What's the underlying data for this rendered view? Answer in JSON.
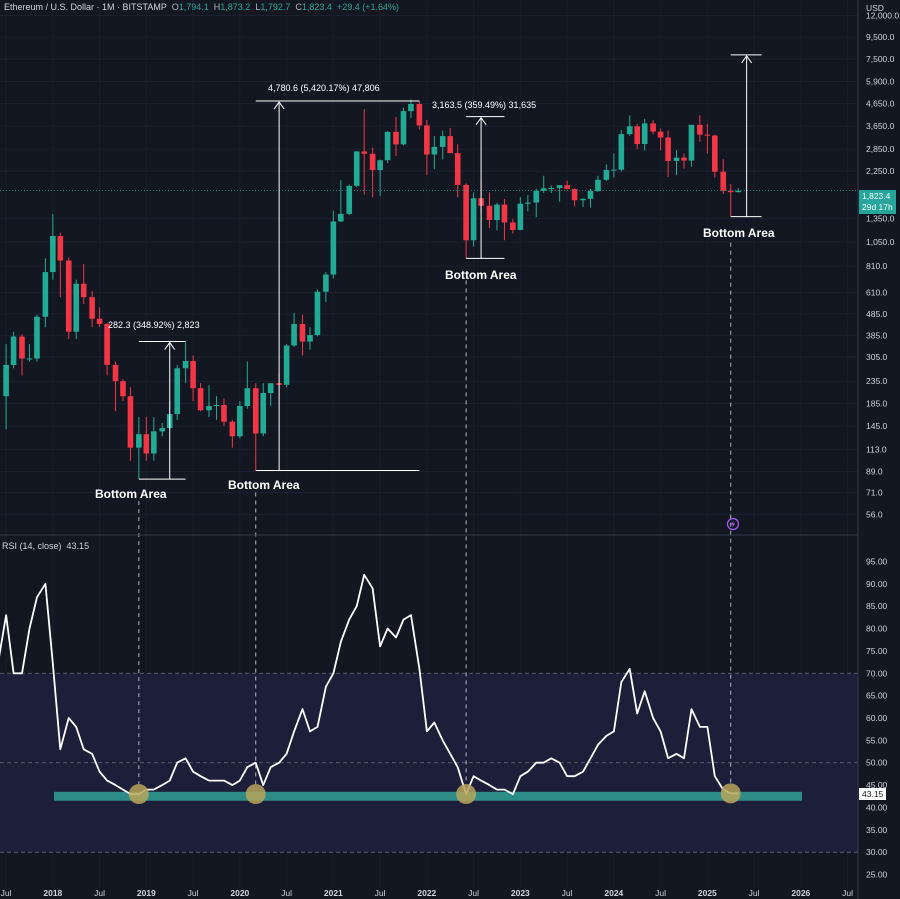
{
  "header": {
    "symbol": "Ethereum / U.S. Dollar · 1M · BITSTAMP",
    "o_label": "O",
    "o_value": "1,794.1",
    "h_label": "H",
    "h_value": "1,873.2",
    "l_label": "L",
    "l_value": "1,792.7",
    "c_label": "C",
    "c_value": "1,823.4",
    "change": "+29.4 (+1.64%)"
  },
  "currency": "USD",
  "price_tag": {
    "price": "1,823.4",
    "countdown": "29d 17h"
  },
  "rsi": {
    "label": "RSI (14, close)",
    "value": "43.15"
  },
  "annotations": [
    {
      "id": "a2019",
      "text": "282.3 (348.92%) 2,823",
      "bottom": "Bottom Area"
    },
    {
      "id": "a2020",
      "text": "4,780.6 (5,420.17%) 47,806",
      "bottom": "Bottom Area"
    },
    {
      "id": "a2022",
      "text": "3,163.5 (359.49%) 31,635",
      "bottom": "Bottom Area"
    },
    {
      "id": "a2025",
      "text": "",
      "bottom": "Bottom Area"
    }
  ],
  "chart_data": [
    {
      "type": "candlestick",
      "title": "Ethereum / U.S. Dollar · 1M · BITSTAMP",
      "y_scale": "log",
      "ylim": [
        49,
        13000
      ],
      "y_ticks": [
        "12,000.0",
        "9,500.0",
        "7,500.0",
        "5,900.0",
        "4,650.0",
        "3,650.0",
        "2,850.0",
        "2,250.0",
        "1,350.0",
        "1,050.0",
        "810.0",
        "610.0",
        "485.0",
        "385.0",
        "305.0",
        "235.0",
        "185.0",
        "145.0",
        "113.0",
        "89.0",
        "71.0",
        "56.0"
      ],
      "x_ticks": [
        "Jul",
        "2018",
        "Jul",
        "2019",
        "Jul",
        "2020",
        "Jul",
        "2021",
        "Jul",
        "2022",
        "Jul",
        "2023",
        "Jul",
        "2024",
        "Jul",
        "2025",
        "Jul",
        "2026",
        "Jul"
      ],
      "ohlc": [
        [
          2017.5,
          200,
          350,
          140,
          280
        ],
        [
          2017.58,
          280,
          400,
          270,
          380
        ],
        [
          2017.67,
          380,
          390,
          250,
          300
        ],
        [
          2017.75,
          300,
          350,
          290,
          300
        ],
        [
          2017.83,
          300,
          480,
          290,
          470
        ],
        [
          2017.92,
          470,
          880,
          420,
          760
        ],
        [
          2018.0,
          760,
          1420,
          700,
          1120
        ],
        [
          2018.08,
          1120,
          1160,
          580,
          860
        ],
        [
          2018.17,
          860,
          890,
          370,
          400
        ],
        [
          2018.25,
          400,
          700,
          370,
          670
        ],
        [
          2018.33,
          670,
          830,
          540,
          580
        ],
        [
          2018.42,
          580,
          620,
          420,
          460
        ],
        [
          2018.5,
          460,
          520,
          420,
          435
        ],
        [
          2018.58,
          435,
          440,
          250,
          280
        ],
        [
          2018.67,
          280,
          290,
          170,
          235
        ],
        [
          2018.75,
          235,
          240,
          190,
          200
        ],
        [
          2018.83,
          200,
          220,
          100,
          115
        ],
        [
          2018.92,
          115,
          160,
          82,
          133
        ],
        [
          2019.0,
          133,
          160,
          100,
          108
        ],
        [
          2019.08,
          108,
          160,
          100,
          137
        ],
        [
          2019.17,
          137,
          150,
          130,
          142
        ],
        [
          2019.25,
          142,
          190,
          140,
          165
        ],
        [
          2019.33,
          165,
          280,
          155,
          270
        ],
        [
          2019.42,
          270,
          360,
          230,
          292
        ],
        [
          2019.5,
          292,
          310,
          190,
          218
        ],
        [
          2019.58,
          218,
          230,
          170,
          172
        ],
        [
          2019.67,
          172,
          225,
          160,
          180
        ],
        [
          2019.75,
          180,
          200,
          155,
          182
        ],
        [
          2019.83,
          182,
          195,
          145,
          152
        ],
        [
          2019.92,
          152,
          155,
          115,
          130
        ],
        [
          2020.0,
          130,
          190,
          127,
          180
        ],
        [
          2020.08,
          180,
          290,
          175,
          218
        ],
        [
          2020.17,
          218,
          230,
          90,
          134
        ],
        [
          2020.25,
          134,
          230,
          130,
          207
        ],
        [
          2020.33,
          207,
          225,
          180,
          230
        ],
        [
          2020.42,
          230,
          255,
          220,
          226
        ],
        [
          2020.5,
          226,
          350,
          220,
          345
        ],
        [
          2020.58,
          345,
          490,
          340,
          435
        ],
        [
          2020.67,
          435,
          480,
          310,
          360
        ],
        [
          2020.75,
          360,
          420,
          330,
          386
        ],
        [
          2020.83,
          386,
          630,
          380,
          615
        ],
        [
          2020.92,
          615,
          760,
          550,
          740
        ],
        [
          2021.0,
          740,
          1470,
          710,
          1310
        ],
        [
          2021.08,
          1310,
          2040,
          1300,
          1420
        ],
        [
          2021.17,
          1420,
          1950,
          1400,
          1920
        ],
        [
          2021.25,
          1920,
          2790,
          1900,
          2780
        ],
        [
          2021.33,
          2780,
          4380,
          1750,
          2710
        ],
        [
          2021.42,
          2710,
          2900,
          1700,
          2275
        ],
        [
          2021.5,
          2275,
          2550,
          1720,
          2530
        ],
        [
          2021.58,
          2530,
          3460,
          2450,
          3430
        ],
        [
          2021.67,
          3430,
          4030,
          2650,
          3000
        ],
        [
          2021.75,
          3000,
          4460,
          2970,
          4290
        ],
        [
          2021.83,
          4290,
          4870,
          3980,
          4630
        ],
        [
          2021.92,
          4630,
          4780,
          3520,
          3680
        ],
        [
          2022.0,
          3680,
          3900,
          2160,
          2690
        ],
        [
          2022.08,
          2690,
          3280,
          2300,
          2920
        ],
        [
          2022.17,
          2920,
          3480,
          2550,
          3280
        ],
        [
          2022.25,
          3280,
          3580,
          2750,
          2730
        ],
        [
          2022.33,
          2730,
          3000,
          1700,
          1940
        ],
        [
          2022.42,
          1940,
          1970,
          880,
          1070
        ],
        [
          2022.5,
          1070,
          1790,
          1000,
          1680
        ],
        [
          2022.58,
          1680,
          2030,
          1420,
          1550
        ],
        [
          2022.67,
          1550,
          1790,
          1220,
          1330
        ],
        [
          2022.75,
          1330,
          1600,
          1190,
          1570
        ],
        [
          2022.83,
          1570,
          1670,
          1070,
          1295
        ],
        [
          2022.92,
          1295,
          1350,
          1150,
          1195
        ],
        [
          2023.0,
          1195,
          1700,
          1190,
          1585
        ],
        [
          2023.08,
          1585,
          1740,
          1460,
          1605
        ],
        [
          2023.17,
          1605,
          1860,
          1370,
          1820
        ],
        [
          2023.25,
          1820,
          2140,
          1780,
          1870
        ],
        [
          2023.33,
          1870,
          1930,
          1780,
          1875
        ],
        [
          2023.42,
          1875,
          1900,
          1620,
          1935
        ],
        [
          2023.5,
          1935,
          2030,
          1850,
          1855
        ],
        [
          2023.58,
          1855,
          1870,
          1540,
          1645
        ],
        [
          2023.67,
          1645,
          1680,
          1530,
          1670
        ],
        [
          2023.75,
          1670,
          1860,
          1520,
          1815
        ],
        [
          2023.83,
          1815,
          2140,
          1800,
          2050
        ],
        [
          2023.92,
          2050,
          2420,
          2020,
          2280
        ],
        [
          2024.0,
          2280,
          2720,
          2100,
          2285
        ],
        [
          2024.08,
          2285,
          3500,
          2240,
          3350
        ],
        [
          2024.17,
          3350,
          4090,
          3290,
          3640
        ],
        [
          2024.25,
          3640,
          3740,
          2850,
          3010
        ],
        [
          2024.33,
          3010,
          3950,
          2810,
          3760
        ],
        [
          2024.42,
          3760,
          3890,
          3350,
          3440
        ],
        [
          2024.5,
          3440,
          3560,
          2810,
          3230
        ],
        [
          2024.58,
          3230,
          3480,
          2110,
          2510
        ],
        [
          2024.67,
          2510,
          2820,
          2150,
          2600
        ],
        [
          2024.75,
          2600,
          2720,
          2310,
          2520
        ],
        [
          2024.83,
          2520,
          3700,
          2360,
          3700
        ],
        [
          2024.92,
          3700,
          4110,
          3090,
          3330
        ],
        [
          2025.0,
          3330,
          3740,
          2720,
          3300
        ],
        [
          2025.08,
          3300,
          3330,
          2100,
          2235
        ],
        [
          2025.17,
          2235,
          2560,
          1760,
          1820
        ],
        [
          2025.25,
          1820,
          1955,
          1380,
          1794
        ],
        [
          2025.33,
          1794,
          1873,
          1792,
          1823
        ]
      ]
    },
    {
      "type": "line",
      "title": "RSI (14, close)",
      "ylim": [
        22,
        98
      ],
      "y_ticks": [
        "95.00",
        "90.00",
        "85.00",
        "80.00",
        "75.00",
        "70.00",
        "65.00",
        "60.00",
        "55.00",
        "50.00",
        "45.00",
        "40.00",
        "35.00",
        "30.00",
        "25.00"
      ],
      "overbought": 70,
      "oversold": 30,
      "support_band": [
        41.5,
        43.5
      ],
      "x": [
        2017.42,
        2017.5,
        2017.58,
        2017.67,
        2017.75,
        2017.83,
        2017.92,
        2018.0,
        2018.08,
        2018.17,
        2018.25,
        2018.33,
        2018.42,
        2018.5,
        2018.58,
        2018.67,
        2018.75,
        2018.83,
        2018.92,
        2019.0,
        2019.08,
        2019.17,
        2019.25,
        2019.33,
        2019.42,
        2019.5,
        2019.58,
        2019.67,
        2019.75,
        2019.83,
        2019.92,
        2020.0,
        2020.08,
        2020.17,
        2020.25,
        2020.33,
        2020.42,
        2020.5,
        2020.58,
        2020.67,
        2020.75,
        2020.83,
        2020.92,
        2021.0,
        2021.08,
        2021.17,
        2021.25,
        2021.33,
        2021.42,
        2021.5,
        2021.58,
        2021.67,
        2021.75,
        2021.83,
        2021.92,
        2022.0,
        2022.08,
        2022.17,
        2022.25,
        2022.33,
        2022.42,
        2022.5,
        2022.58,
        2022.67,
        2022.75,
        2022.83,
        2022.92,
        2023.0,
        2023.08,
        2023.17,
        2023.25,
        2023.33,
        2023.42,
        2023.5,
        2023.58,
        2023.67,
        2023.75,
        2023.83,
        2023.92,
        2024.0,
        2024.08,
        2024.17,
        2024.25,
        2024.33,
        2024.42,
        2024.5,
        2024.58,
        2024.67,
        2024.75,
        2024.83,
        2024.92,
        2025.0,
        2025.08,
        2025.17,
        2025.25,
        2025.33
      ],
      "values": [
        73,
        83,
        70,
        70,
        80,
        87,
        90,
        72,
        53,
        60,
        58,
        53,
        52,
        48,
        46,
        45,
        44,
        43,
        43,
        44,
        44,
        45,
        46,
        50,
        51,
        48,
        47,
        46,
        46,
        46,
        45,
        46,
        49,
        50,
        45,
        49,
        50,
        52,
        57,
        62,
        57,
        58,
        67,
        70,
        77,
        82,
        85,
        92,
        89,
        76,
        80,
        78,
        82,
        83,
        71,
        57,
        59,
        55,
        52,
        49,
        43,
        47,
        46,
        45,
        44,
        44,
        43,
        47,
        48,
        50,
        50,
        51,
        50,
        47,
        47,
        48,
        51,
        54,
        56,
        57,
        68,
        71,
        61,
        66,
        60,
        57,
        51,
        52,
        51,
        62,
        58,
        58,
        47,
        44,
        43.15,
        43.15
      ]
    }
  ]
}
